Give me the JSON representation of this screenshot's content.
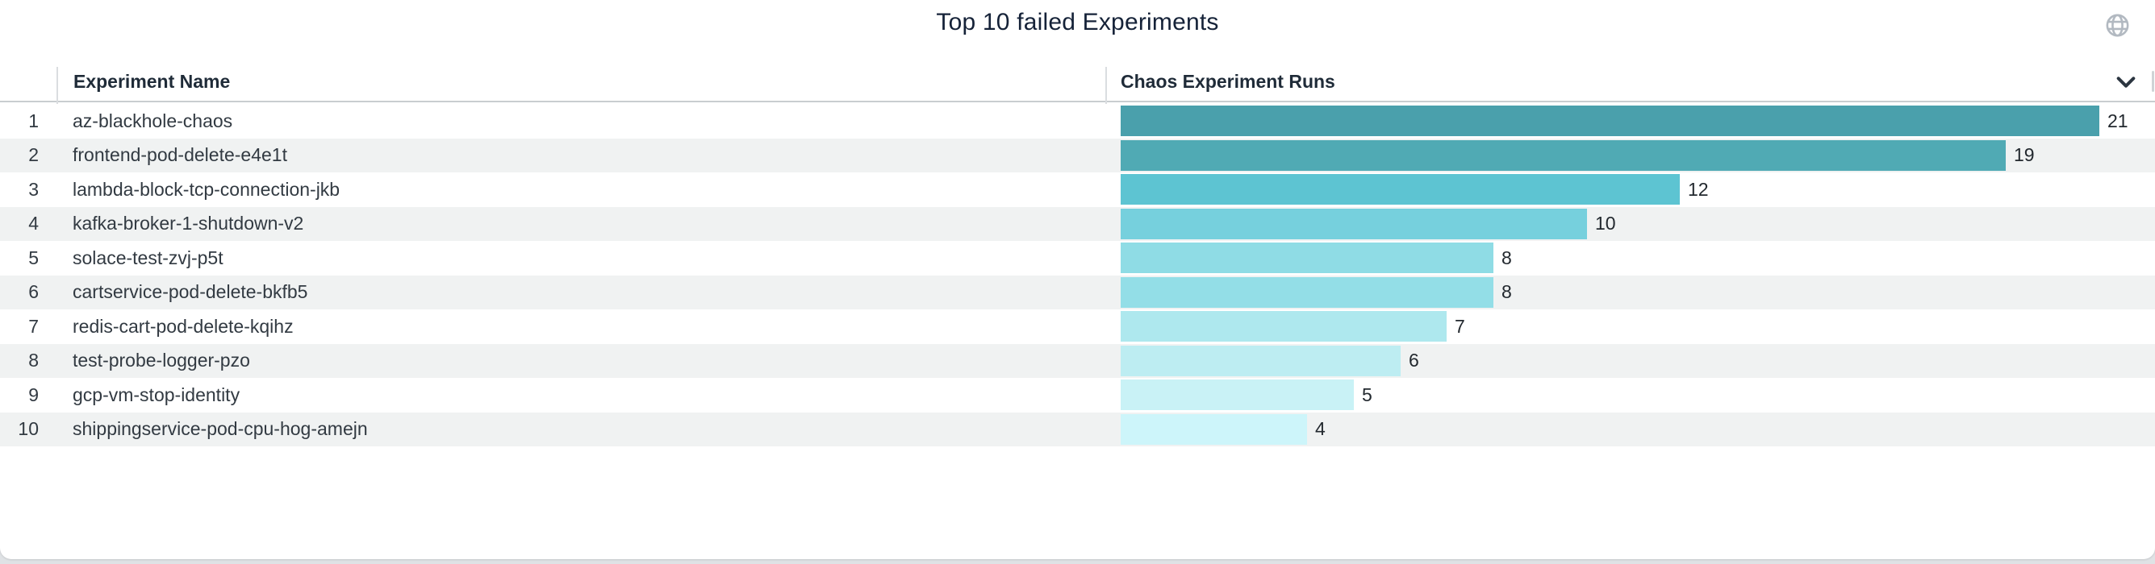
{
  "title": "Top 10 failed Experiments",
  "icons": {
    "globe": "globe-icon",
    "header_menu": "chevron-down-icon"
  },
  "colors": {
    "page_background": "#dfe2e5",
    "card_background": "#ffffff",
    "title_text": "#152238",
    "header_text": "#1f2b38",
    "row_text": "#323a42",
    "value_text": "#22282e",
    "zebra_stripe": "#f0f2f2",
    "divider": "#dadde0",
    "header_border": "#c9cdd0",
    "globe_icon": "#b2b9c1",
    "chevron_icon": "#2b3540"
  },
  "table": {
    "columns": [
      {
        "label": "Experiment Name"
      },
      {
        "label": "Chaos Experiment Runs"
      }
    ],
    "rows": [
      {
        "rank": "1",
        "name": "az-blackhole-chaos",
        "value": 21,
        "bar_color": "#4aa0ac"
      },
      {
        "rank": "2",
        "name": "frontend-pod-delete-e4e1t",
        "value": 19,
        "bar_color": "#50aab4"
      },
      {
        "rank": "3",
        "name": "lambda-block-tcp-connection-jkb",
        "value": 12,
        "bar_color": "#5dc4d2"
      },
      {
        "rank": "4",
        "name": "kafka-broker-1-shutdown-v2",
        "value": 10,
        "bar_color": "#76d0dd"
      },
      {
        "rank": "5",
        "name": "solace-test-zvj-p5t",
        "value": 8,
        "bar_color": "#8fdce5"
      },
      {
        "rank": "6",
        "name": "cartservice-pod-delete-bkfb5",
        "value": 8,
        "bar_color": "#93dee7"
      },
      {
        "rank": "7",
        "name": "redis-cart-pod-delete-kqihz",
        "value": 7,
        "bar_color": "#aee8ee"
      },
      {
        "rank": "8",
        "name": "test-probe-logger-pzo",
        "value": 6,
        "bar_color": "#bdedf2"
      },
      {
        "rank": "9",
        "name": "gcp-vm-stop-identity",
        "value": 5,
        "bar_color": "#c9f2f6"
      },
      {
        "rank": "10",
        "name": "shippingservice-pod-cpu-hog-amejn",
        "value": 4,
        "bar_color": "#cdf5fa"
      }
    ]
  },
  "chart_data": {
    "type": "bar",
    "orientation": "horizontal",
    "title": "Top 10 failed Experiments",
    "categories": [
      "az-blackhole-chaos",
      "frontend-pod-delete-e4e1t",
      "lambda-block-tcp-connection-jkb",
      "kafka-broker-1-shutdown-v2",
      "solace-test-zvj-p5t",
      "cartservice-pod-delete-bkfb5",
      "redis-cart-pod-delete-kqihz",
      "test-probe-logger-pzo",
      "gcp-vm-stop-identity",
      "shippingservice-pod-cpu-hog-amejn"
    ],
    "series": [
      {
        "name": "Chaos Experiment Runs",
        "values": [
          21,
          19,
          12,
          10,
          8,
          8,
          7,
          6,
          5,
          4
        ]
      }
    ],
    "xlim": [
      0,
      21
    ],
    "grid": false,
    "legend_position": "none",
    "data_labels": true,
    "bar_colors": [
      "#4aa0ac",
      "#50aab4",
      "#5dc4d2",
      "#76d0dd",
      "#8fdce5",
      "#93dee7",
      "#aee8ee",
      "#bdedf2",
      "#c9f2f6",
      "#cdf5fa"
    ]
  }
}
